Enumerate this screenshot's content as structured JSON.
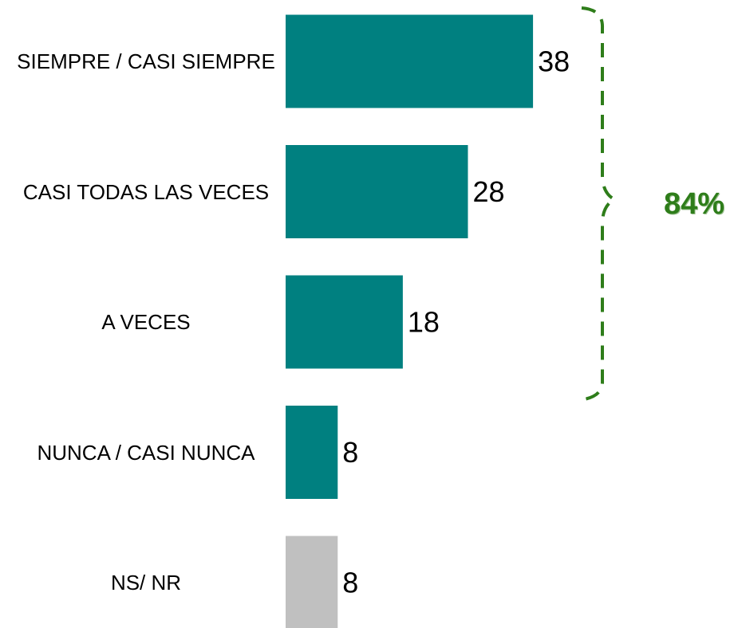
{
  "chart_data": {
    "type": "bar",
    "orientation": "horizontal",
    "categories": [
      "SIEMPRE / CASI SIEMPRE",
      "CASI TODAS LAS VECES",
      "A VECES",
      "NUNCA / CASI NUNCA",
      "NS/ NR"
    ],
    "values": [
      38,
      28,
      18,
      8,
      8
    ],
    "colors": [
      "#008080",
      "#008080",
      "#008080",
      "#008080",
      "#c0c0c0"
    ],
    "annotation": {
      "text": "84%",
      "color": "#2e7d1a"
    }
  }
}
